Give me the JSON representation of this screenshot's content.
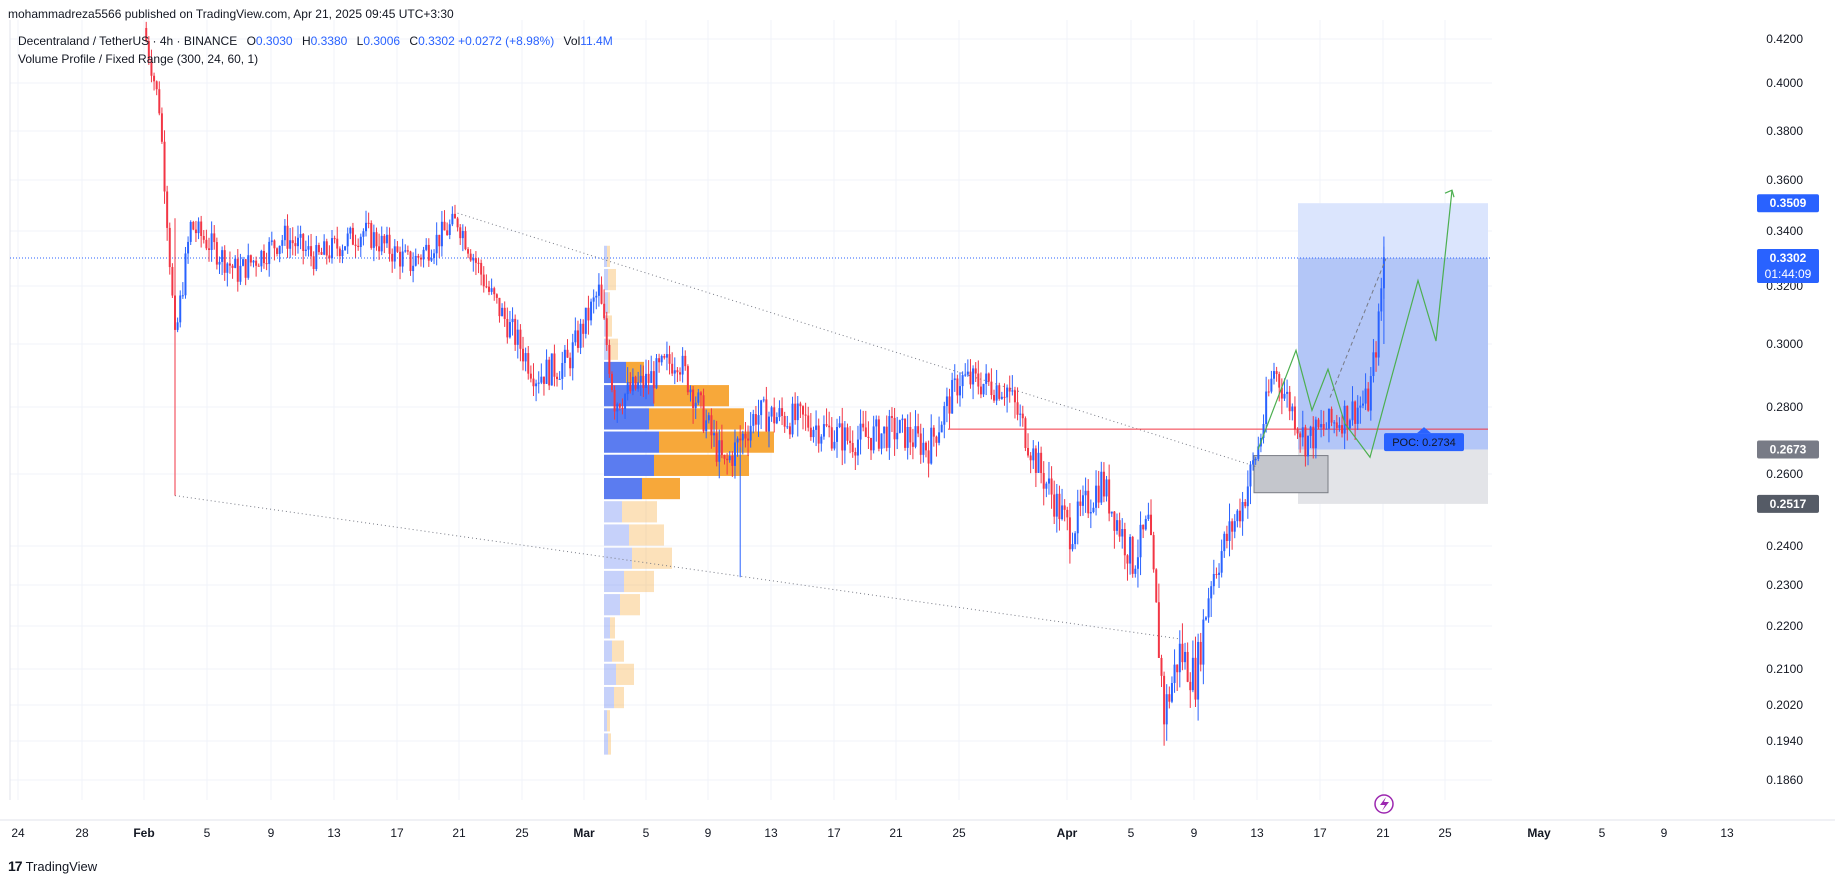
{
  "header": {
    "publisher_line": "mohammadreza5566 published on TradingView.com, Apr 21, 2025 09:45 UTC+3:30"
  },
  "legend": {
    "symbol": "Decentraland / TetherUS · 4h · BINANCE",
    "open_label": "O",
    "open": "0.3030",
    "high_label": "H",
    "high": "0.3380",
    "low_label": "L",
    "low": "0.3006",
    "close_label": "C",
    "close": "0.3302",
    "change": "+0.0272 (+8.98%)",
    "vol_label": "Vol",
    "vol": "11.4M",
    "indicator": "Volume Profile / Fixed Range (300, 24, 60, 1)"
  },
  "footer": {
    "brand": "TradingView",
    "logo": "17"
  },
  "colors": {
    "up": "#2962ff",
    "down": "#f23645",
    "poc_line": "#f23645",
    "vp_up": "#5b7cf0",
    "vp_down": "#f7a83a",
    "target_zone": "#b3c6f7",
    "stop_zone": "#d5d7dc",
    "price_badge": "#2962ff",
    "level_badge": "#555b66",
    "forecast_path": "#4caf50",
    "bolt_icon": "#9c27b0"
  },
  "chart_data": {
    "type": "candlestick",
    "symbol": "MANAUSDT",
    "timeframe": "4h",
    "y_axis": {
      "ticks": [
        "0.4200",
        "0.4000",
        "0.3800",
        "0.3600",
        "0.3400",
        "0.3200",
        "0.3000",
        "0.2800",
        "0.2600",
        "0.2400",
        "0.2300",
        "0.2200",
        "0.2100",
        "0.2020",
        "0.1940",
        "0.1860"
      ],
      "tick_values": [
        0.42,
        0.4,
        0.38,
        0.36,
        0.34,
        0.32,
        0.3,
        0.28,
        0.26,
        0.24,
        0.23,
        0.22,
        0.21,
        0.202,
        0.194,
        0.186
      ],
      "scale": "log"
    },
    "x_axis": {
      "labels": [
        "24",
        "28",
        "Feb",
        "5",
        "9",
        "13",
        "17",
        "21",
        "25",
        "Mar",
        "5",
        "9",
        "13",
        "17",
        "21",
        "25",
        "Apr",
        "5",
        "9",
        "13",
        "17",
        "21",
        "25",
        "May",
        "5",
        "9",
        "13"
      ],
      "bold": [
        "Feb",
        "Mar",
        "Apr",
        "May"
      ]
    },
    "price_badges": [
      {
        "label": "0.3509",
        "value": 0.3509,
        "style": "blue"
      },
      {
        "label": "0.3302",
        "value": 0.3302,
        "style": "blue",
        "sub": "01:44:09"
      },
      {
        "label": "0.2673",
        "value": 0.2673,
        "style": "gray"
      },
      {
        "label": "0.2517",
        "value": 0.2517,
        "style": "dark"
      }
    ],
    "current_price": 0.3302,
    "poc": {
      "label": "POC: 0.2734",
      "value": 0.2734
    },
    "trade_zone": {
      "target": 0.3509,
      "entry": 0.2673,
      "stop": 0.2517
    },
    "volume_profile": {
      "top": 0.335,
      "bottom": 0.191,
      "rows": [
        {
          "up": 3,
          "down": 3
        },
        {
          "up": 4,
          "down": 8
        },
        {
          "up": 4,
          "down": 2
        },
        {
          "up": 3,
          "down": 5
        },
        {
          "up": 4,
          "down": 10
        },
        {
          "up": 22,
          "down": 18
        },
        {
          "up": 50,
          "down": 75
        },
        {
          "up": 45,
          "down": 95
        },
        {
          "up": 55,
          "down": 115
        },
        {
          "up": 50,
          "down": 95
        },
        {
          "up": 38,
          "down": 38
        },
        {
          "up": 18,
          "down": 35
        },
        {
          "up": 25,
          "down": 35
        },
        {
          "up": 28,
          "down": 40
        },
        {
          "up": 20,
          "down": 30
        },
        {
          "up": 16,
          "down": 20
        },
        {
          "up": 6,
          "down": 5
        },
        {
          "up": 8,
          "down": 12
        },
        {
          "up": 12,
          "down": 18
        },
        {
          "up": 10,
          "down": 10
        },
        {
          "up": 3,
          "down": 3
        },
        {
          "up": 4,
          "down": 3
        }
      ]
    },
    "trendlines": [
      {
        "from": [
          "Feb 21",
          0.347
        ],
        "to": [
          "Apr 13",
          0.262
        ],
        "style": "dotted"
      },
      {
        "from": [
          "Feb 3",
          0.254
        ],
        "to": [
          "Apr 8",
          0.217
        ],
        "style": "dotted"
      }
    ],
    "forecast_path": [
      0.2673,
      0.298,
      0.279,
      0.292,
      0.275,
      0.265,
      0.29,
      0.322,
      0.301,
      0.356
    ]
  }
}
